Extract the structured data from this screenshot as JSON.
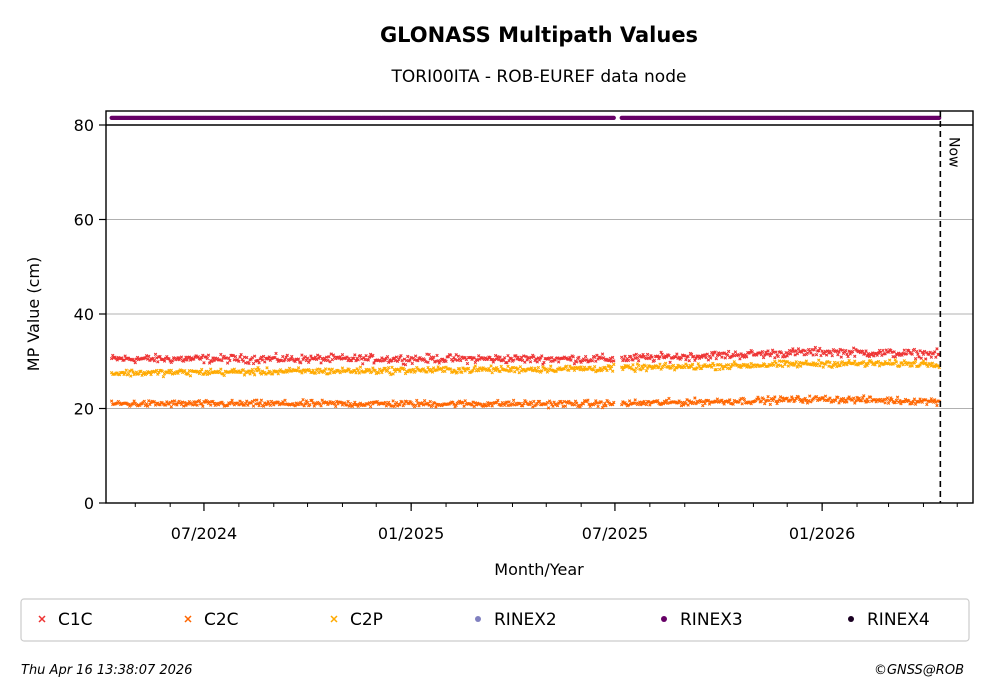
{
  "chart_data": {
    "type": "scatter",
    "title": "GLONASS Multipath Values",
    "subtitle": "TORI00ITA - ROB-EUREF data node",
    "xlabel": "Month/Year",
    "ylabel": "MP Value (cm)",
    "ylim": [
      0,
      80
    ],
    "yticks": [
      0,
      20,
      40,
      60,
      80
    ],
    "x_range": [
      "2024-04-05",
      "2026-05-15"
    ],
    "xticks": [
      {
        "date": "2024-07-01",
        "label": "07/2024"
      },
      {
        "date": "2025-01-01",
        "label": "01/2025"
      },
      {
        "date": "2025-07-01",
        "label": "07/2025"
      },
      {
        "date": "2026-01-01",
        "label": "01/2026"
      }
    ],
    "data_start": "2024-04-10",
    "data_end": "2026-04-15",
    "gaps": [
      [
        "2025-07-01",
        "2025-07-06"
      ]
    ],
    "now_marker": {
      "date": "2026-04-16",
      "label": "Now"
    },
    "grid": "horizontal",
    "legend_position": "bottom",
    "series": [
      {
        "name": "C1C",
        "color": "#ee3333",
        "marker": "x",
        "typical_range": [
          29,
          33
        ],
        "trend": [
          [
            "2024-04-10",
            30.5
          ],
          [
            "2025-07-01",
            30.5
          ],
          [
            "2026-01-01",
            32.0
          ],
          [
            "2026-04-15",
            31.5
          ]
        ]
      },
      {
        "name": "C2C",
        "color": "#ff6600",
        "marker": "x",
        "typical_range": [
          20,
          23
        ],
        "trend": [
          [
            "2024-04-10",
            21.0
          ],
          [
            "2025-07-01",
            21.0
          ],
          [
            "2026-01-01",
            22.0
          ],
          [
            "2026-04-15",
            21.5
          ]
        ]
      },
      {
        "name": "C2P",
        "color": "#ffaa00",
        "marker": "x",
        "typical_range": [
          27,
          30
        ],
        "trend": [
          [
            "2024-04-10",
            27.5
          ],
          [
            "2025-07-01",
            28.5
          ],
          [
            "2026-01-01",
            29.5
          ],
          [
            "2026-04-15",
            29.5
          ]
        ]
      },
      {
        "name": "RINEX2",
        "color": "#8080c0",
        "marker": "o",
        "shown": false
      },
      {
        "name": "RINEX3",
        "color": "#660066",
        "marker": "o",
        "row_value": 81.5
      },
      {
        "name": "RINEX4",
        "color": "#1a0022",
        "marker": "o",
        "shown": false
      }
    ]
  },
  "footer": {
    "timestamp": "Thu Apr 16 13:38:07 2026",
    "copyright": "©GNSS@ROB"
  }
}
